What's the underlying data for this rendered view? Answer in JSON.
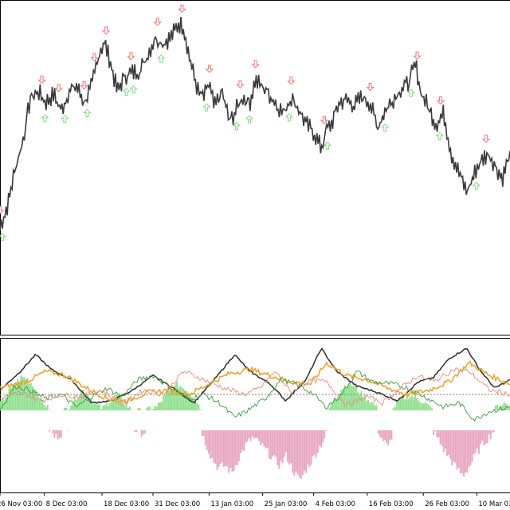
{
  "chart_data": {
    "type": "line",
    "title": "",
    "colors": {
      "background": "#ffffff",
      "frame": "#000000",
      "price": "#3a3a3a",
      "buy_arrow": "#7fdc7f",
      "sell_arrow": "#ff7070",
      "hist_positive": "#90e090",
      "hist_negative": "#e8a6c0",
      "zero_line": "#808080"
    },
    "x_tick_labels": [
      "26 Nov 03:00",
      "8 Dec 03:00",
      "18 Dec 03:00",
      "31 Dec 03:00",
      "13 Jan 03:00",
      "25 Jan 03:00",
      "4 Feb 03:00",
      "16 Feb 03:00",
      "26 Feb 03:00",
      "10 Mar 03:00"
    ],
    "x_tick_positions": [
      0.0,
      0.087,
      0.2,
      0.3,
      0.41,
      0.515,
      0.615,
      0.72,
      0.83,
      0.935
    ],
    "main_panel": {
      "series": [
        {
          "role": "price",
          "values": [
            [
              0.0,
              0.2
            ],
            [
              0.015,
              0.28
            ],
            [
              0.03,
              0.42
            ],
            [
              0.045,
              0.52
            ],
            [
              0.06,
              0.68
            ],
            [
              0.075,
              0.7
            ],
            [
              0.09,
              0.66
            ],
            [
              0.105,
              0.69
            ],
            [
              0.12,
              0.63
            ],
            [
              0.135,
              0.7
            ],
            [
              0.15,
              0.72
            ],
            [
              0.165,
              0.66
            ],
            [
              0.18,
              0.72
            ],
            [
              0.195,
              0.85
            ],
            [
              0.205,
              0.88
            ],
            [
              0.215,
              0.82
            ],
            [
              0.23,
              0.7
            ],
            [
              0.245,
              0.76
            ],
            [
              0.26,
              0.77
            ],
            [
              0.275,
              0.78
            ],
            [
              0.29,
              0.84
            ],
            [
              0.305,
              0.9
            ],
            [
              0.32,
              0.88
            ],
            [
              0.335,
              0.9
            ],
            [
              0.35,
              0.95
            ],
            [
              0.36,
              0.94
            ],
            [
              0.37,
              0.84
            ],
            [
              0.38,
              0.76
            ],
            [
              0.39,
              0.69
            ],
            [
              0.4,
              0.68
            ],
            [
              0.41,
              0.73
            ],
            [
              0.42,
              0.64
            ],
            [
              0.435,
              0.7
            ],
            [
              0.45,
              0.59
            ],
            [
              0.46,
              0.62
            ],
            [
              0.475,
              0.68
            ],
            [
              0.49,
              0.66
            ],
            [
              0.5,
              0.74
            ],
            [
              0.52,
              0.71
            ],
            [
              0.54,
              0.66
            ],
            [
              0.555,
              0.62
            ],
            [
              0.57,
              0.68
            ],
            [
              0.585,
              0.64
            ],
            [
              0.6,
              0.58
            ],
            [
              0.615,
              0.55
            ],
            [
              0.63,
              0.49
            ],
            [
              0.64,
              0.56
            ],
            [
              0.65,
              0.58
            ],
            [
              0.665,
              0.66
            ],
            [
              0.68,
              0.67
            ],
            [
              0.695,
              0.65
            ],
            [
              0.71,
              0.68
            ],
            [
              0.725,
              0.66
            ],
            [
              0.74,
              0.57
            ],
            [
              0.755,
              0.63
            ],
            [
              0.77,
              0.67
            ],
            [
              0.785,
              0.71
            ],
            [
              0.8,
              0.73
            ],
            [
              0.815,
              0.8
            ],
            [
              0.825,
              0.7
            ],
            [
              0.84,
              0.64
            ],
            [
              0.855,
              0.58
            ],
            [
              0.87,
              0.62
            ],
            [
              0.885,
              0.47
            ],
            [
              0.9,
              0.4
            ],
            [
              0.915,
              0.33
            ],
            [
              0.925,
              0.37
            ],
            [
              0.935,
              0.42
            ],
            [
              0.95,
              0.46
            ],
            [
              0.96,
              0.47
            ],
            [
              0.97,
              0.43
            ],
            [
              0.985,
              0.38
            ],
            [
              1.0,
              0.47
            ]
          ]
        }
      ],
      "buy_signals": [
        0.005,
        0.088,
        0.127,
        0.171,
        0.248,
        0.262,
        0.316,
        0.405,
        0.464,
        0.489,
        0.567,
        0.642,
        0.755,
        0.806,
        0.862,
        0.934
      ],
      "sell_signals": [
        0.0,
        0.082,
        0.115,
        0.165,
        0.185,
        0.208,
        0.257,
        0.309,
        0.357,
        0.411,
        0.471,
        0.501,
        0.571,
        0.636,
        0.726,
        0.818,
        0.864,
        0.953
      ]
    },
    "indicator_panel": {
      "series": [
        {
          "role": "black_line",
          "color": "#2b2b2b",
          "values": [
            [
              0,
              0.1
            ],
            [
              0.04,
              0.55
            ],
            [
              0.07,
              0.95
            ],
            [
              0.1,
              0.6
            ],
            [
              0.14,
              0.35
            ],
            [
              0.18,
              -0.2
            ],
            [
              0.22,
              -0.15
            ],
            [
              0.26,
              0.1
            ],
            [
              0.3,
              0.45
            ],
            [
              0.34,
              0.15
            ],
            [
              0.38,
              -0.2
            ],
            [
              0.42,
              0.35
            ],
            [
              0.46,
              0.95
            ],
            [
              0.49,
              0.55
            ],
            [
              0.53,
              0.25
            ],
            [
              0.56,
              -0.15
            ],
            [
              0.6,
              0.35
            ],
            [
              0.63,
              1.1
            ],
            [
              0.66,
              0.55
            ],
            [
              0.7,
              0.2
            ],
            [
              0.74,
              0.05
            ],
            [
              0.78,
              -0.15
            ],
            [
              0.82,
              0.3
            ],
            [
              0.85,
              0.4
            ],
            [
              0.88,
              0.85
            ],
            [
              0.915,
              1.1
            ],
            [
              0.94,
              0.6
            ],
            [
              0.97,
              0.15
            ],
            [
              1.0,
              0.35
            ]
          ]
        },
        {
          "role": "orange_line",
          "color": "#f0a020",
          "values": [
            [
              0,
              0.15
            ],
            [
              0.05,
              0.3
            ],
            [
              0.09,
              0.55
            ],
            [
              0.13,
              0.45
            ],
            [
              0.17,
              0.15
            ],
            [
              0.21,
              -0.1
            ],
            [
              0.25,
              -0.15
            ],
            [
              0.29,
              0.05
            ],
            [
              0.33,
              0.1
            ],
            [
              0.37,
              0.0
            ],
            [
              0.41,
              0.25
            ],
            [
              0.45,
              0.5
            ],
            [
              0.49,
              0.6
            ],
            [
              0.53,
              0.45
            ],
            [
              0.57,
              0.3
            ],
            [
              0.61,
              0.25
            ],
            [
              0.64,
              0.75
            ],
            [
              0.68,
              0.45
            ],
            [
              0.72,
              0.35
            ],
            [
              0.76,
              0.15
            ],
            [
              0.8,
              0.0
            ],
            [
              0.84,
              0.1
            ],
            [
              0.88,
              0.3
            ],
            [
              0.92,
              0.75
            ],
            [
              0.96,
              0.45
            ],
            [
              1.0,
              0.25
            ]
          ]
        },
        {
          "role": "green_line",
          "color": "#3a9a3a",
          "values": [
            [
              0,
              -0.35
            ],
            [
              0.03,
              0.2
            ],
            [
              0.06,
              0.1
            ],
            [
              0.09,
              -0.1
            ],
            [
              0.12,
              0.0
            ],
            [
              0.15,
              -0.3
            ],
            [
              0.18,
              -0.05
            ],
            [
              0.21,
              0.15
            ],
            [
              0.24,
              -0.05
            ],
            [
              0.27,
              0.35
            ],
            [
              0.3,
              0.45
            ],
            [
              0.33,
              0.2
            ],
            [
              0.37,
              -0.1
            ],
            [
              0.4,
              0.0
            ],
            [
              0.43,
              -0.2
            ],
            [
              0.46,
              -0.55
            ],
            [
              0.49,
              -0.35
            ],
            [
              0.52,
              -0.1
            ],
            [
              0.55,
              0.35
            ],
            [
              0.58,
              0.25
            ],
            [
              0.61,
              0.05
            ],
            [
              0.64,
              -0.3
            ],
            [
              0.67,
              0.0
            ],
            [
              0.7,
              0.55
            ],
            [
              0.73,
              0.3
            ],
            [
              0.77,
              0.25
            ],
            [
              0.8,
              0.15
            ],
            [
              0.84,
              -0.1
            ],
            [
              0.87,
              -0.3
            ],
            [
              0.9,
              -0.2
            ],
            [
              0.93,
              -0.6
            ],
            [
              0.96,
              -0.4
            ],
            [
              1.0,
              -0.3
            ]
          ]
        },
        {
          "role": "salmon_line",
          "color": "#f08878",
          "values": [
            [
              0,
              -0.1
            ],
            [
              0.04,
              0.05
            ],
            [
              0.08,
              -0.15
            ],
            [
              0.12,
              0.0
            ],
            [
              0.16,
              -0.05
            ],
            [
              0.2,
              0.1
            ],
            [
              0.24,
              -0.25
            ],
            [
              0.28,
              0.1
            ],
            [
              0.32,
              0.0
            ],
            [
              0.36,
              0.55
            ],
            [
              0.4,
              0.35
            ],
            [
              0.44,
              0.15
            ],
            [
              0.48,
              0.0
            ],
            [
              0.51,
              0.15
            ],
            [
              0.54,
              0.55
            ],
            [
              0.57,
              0.05
            ],
            [
              0.61,
              0.35
            ],
            [
              0.64,
              0.3
            ],
            [
              0.68,
              -0.25
            ],
            [
              0.72,
              -0.05
            ],
            [
              0.75,
              -0.2
            ],
            [
              0.78,
              0.1
            ],
            [
              0.82,
              0.45
            ],
            [
              0.85,
              0.3
            ],
            [
              0.89,
              0.6
            ],
            [
              0.92,
              0.55
            ],
            [
              0.96,
              0.1
            ],
            [
              1.0,
              0.0
            ]
          ]
        }
      ],
      "histogram": [
        0.2,
        0.45,
        0.7,
        0.9,
        0.85,
        0.6,
        0.3,
        0.05,
        -0.15,
        -0.05,
        0.1,
        0.35,
        0.55,
        0.4,
        0.15,
        0.05,
        0.25,
        0.4,
        0.25,
        0.05,
        0.0,
        -0.05,
        0.05,
        0.1,
        0.35,
        0.55,
        0.7,
        0.6,
        0.45,
        0.2,
        -0.2,
        -0.55,
        -0.75,
        -0.7,
        -0.85,
        -0.55,
        -0.3,
        -0.15,
        -0.25,
        -0.4,
        -0.55,
        -0.7,
        -0.5,
        -0.8,
        -1.0,
        -0.75,
        -0.55,
        -0.3,
        -0.05,
        0.3,
        0.55,
        0.75,
        0.65,
        0.45,
        0.3,
        0.15,
        -0.15,
        -0.35,
        0.15,
        0.3,
        0.4,
        0.35,
        0.25,
        0.1,
        -0.1,
        -0.35,
        -0.55,
        -0.75,
        -0.9,
        -0.7,
        -0.45,
        -0.25,
        -0.1,
        0.1,
        0.2,
        0.1
      ]
    }
  }
}
